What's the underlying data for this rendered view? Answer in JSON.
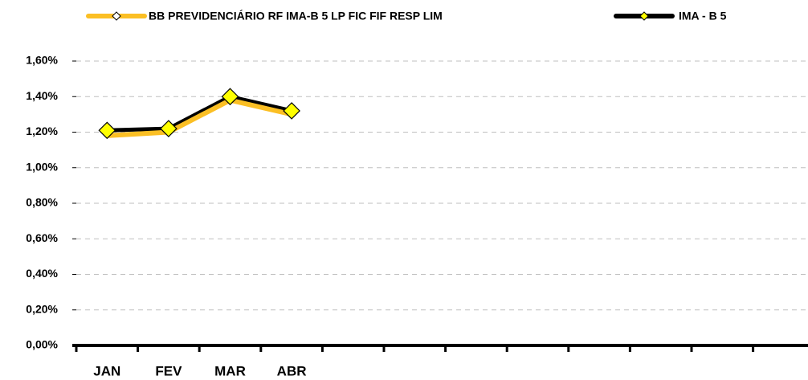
{
  "chart_data": {
    "type": "line",
    "categories": [
      "JAN",
      "FEV",
      "MAR",
      "ABR",
      null,
      null,
      null,
      null,
      null,
      null,
      null,
      null
    ],
    "series": [
      {
        "name": "BB PREVIDENCIÁRIO RF IMA-B 5 LP FIC FIF RESP LIM",
        "color": "#fbbf24",
        "values": [
          1.18,
          1.2,
          1.38,
          1.3,
          null,
          null,
          null,
          null,
          null,
          null,
          null,
          null
        ]
      },
      {
        "name": "IMA - B 5",
        "color": "#000000",
        "marker_color": "#ffff00",
        "values": [
          1.21,
          1.22,
          1.4,
          1.32,
          null,
          null,
          null,
          null,
          null,
          null,
          null,
          null
        ]
      }
    ],
    "ylim": [
      0,
      1.6
    ],
    "yticks": [
      {
        "value": 0,
        "label": "0,00%"
      },
      {
        "value": 0.2,
        "label": "0,20%"
      },
      {
        "value": 0.4,
        "label": "0,40%"
      },
      {
        "value": 0.6,
        "label": "0,60%"
      },
      {
        "value": 0.8,
        "label": "0,80%"
      },
      {
        "value": 1.0,
        "label": "1,00%"
      },
      {
        "value": 1.2,
        "label": "1,20%"
      },
      {
        "value": 1.4,
        "label": "1,40%"
      },
      {
        "value": 1.6,
        "label": "1,60%"
      }
    ],
    "grid": true,
    "legend": "top"
  }
}
